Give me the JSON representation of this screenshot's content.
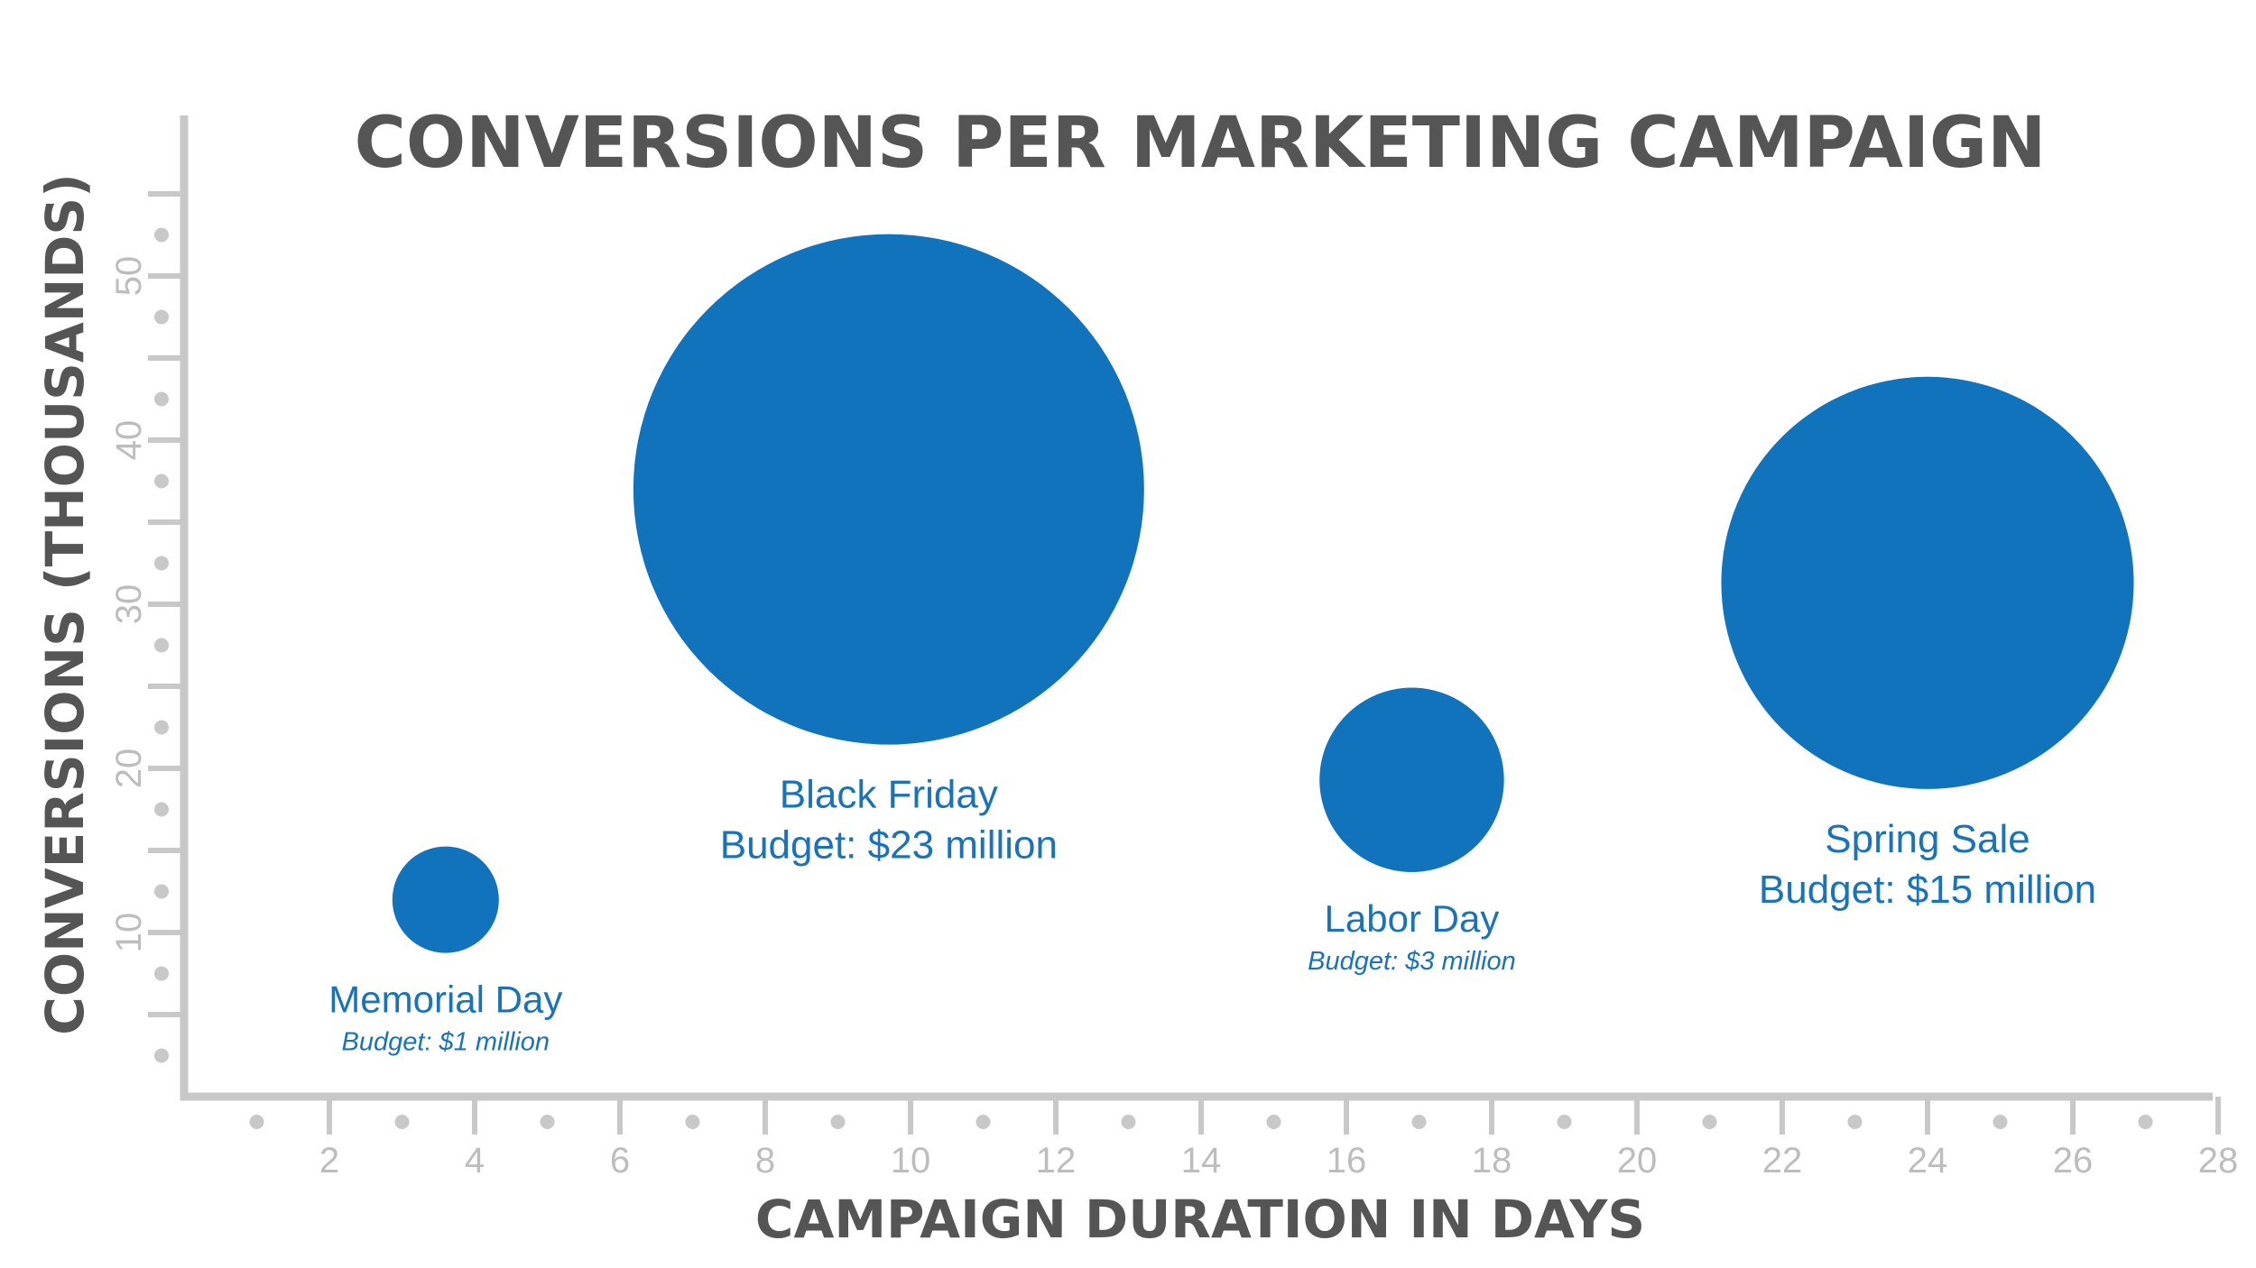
{
  "chart_data": {
    "type": "scatter",
    "variant": "bubble",
    "title": "CONVERSIONS PER MARKETING CAMPAIGN",
    "xlabel": "CAMPAIGN DURATION IN DAYS",
    "ylabel": "CONVERSIONS (THOUSANDS)",
    "xlim": [
      0,
      28
    ],
    "ylim": [
      0,
      55
    ],
    "x_ticks": [
      2,
      4,
      6,
      8,
      10,
      12,
      14,
      16,
      18,
      20,
      22,
      24,
      26,
      28
    ],
    "y_ticks": [
      10,
      20,
      30,
      40,
      50
    ],
    "grid": false,
    "bubble_color": "#1073bb",
    "text_color": "#1a73b8",
    "axis_color": "#c8c8c8",
    "points": [
      {
        "name": "Memorial Day",
        "budget_label": "Budget: $1 million",
        "x": 3.6,
        "y": 12,
        "budget": 1,
        "label_style": "small"
      },
      {
        "name": "Black Friday",
        "budget_label": "Budget: $23 million",
        "x": 9.7,
        "y": 37,
        "budget": 23,
        "label_style": "large"
      },
      {
        "name": "Labor Day",
        "budget_label": "Budget: $3 million",
        "x": 16.9,
        "y": 19.3,
        "budget": 3,
        "label_style": "small"
      },
      {
        "name": "Spring Sale",
        "budget_label": "Budget: $15 million",
        "x": 24.0,
        "y": 31.3,
        "budget": 15,
        "label_style": "large"
      }
    ]
  }
}
